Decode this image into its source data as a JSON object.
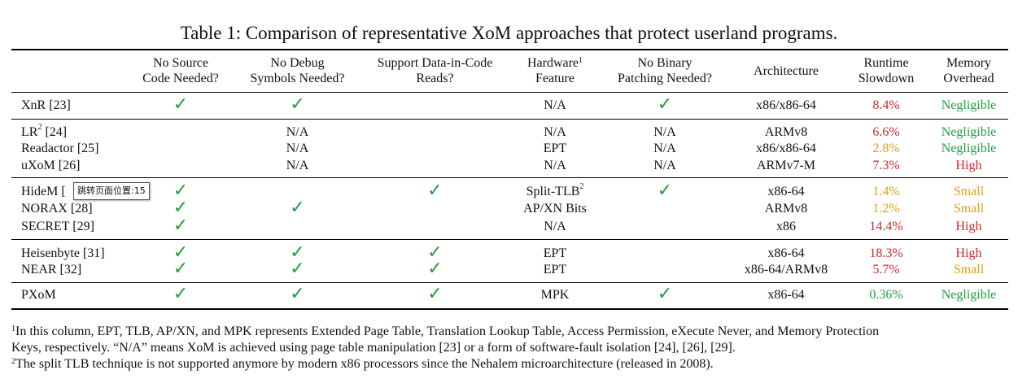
{
  "caption": "Table 1: Comparison of representative XoM approaches that protect userland programs.",
  "headers": {
    "approach": "",
    "no_source_1": "No Source",
    "no_source_2": "Code Needed?",
    "no_debug_1": "No Debug",
    "no_debug_2": "Symbols Needed?",
    "data_code_1": "Support Data-in-Code",
    "data_code_2": "Reads?",
    "hw_1": "Hardware",
    "hw_sup": "1",
    "hw_2": "Feature",
    "no_patch_1": "No Binary",
    "no_patch_2": "Patching Needed?",
    "arch": "Architecture",
    "runtime_1": "Runtime",
    "runtime_2": "Slowdown",
    "memory_1": "Memory",
    "memory_2": "Overhead"
  },
  "check_symbol": "✓",
  "rows": [
    {
      "name": "XnR [23]",
      "no_source": "✓",
      "no_debug": "✓",
      "data_code": "",
      "hw": "N/A",
      "no_patch": "✓",
      "arch": "x86/x86-64",
      "runtime": "8.4%",
      "memory": "Negligible"
    },
    {
      "name": "LR",
      "name_sup": "2",
      "name_ref": " [24]",
      "no_source": "",
      "no_debug": "N/A",
      "data_code": "",
      "hw": "N/A",
      "no_patch": "N/A",
      "arch": "ARMv8",
      "runtime": "6.6%",
      "memory": "Negligible"
    },
    {
      "name": "Readactor [25]",
      "no_source": "",
      "no_debug": "N/A",
      "data_code": "",
      "hw": "EPT",
      "no_patch": "N/A",
      "arch": "x86/x86-64",
      "runtime": "2.8%",
      "memory": "Negligible"
    },
    {
      "name": "uXoM [26]",
      "no_source": "",
      "no_debug": "N/A",
      "data_code": "",
      "hw": "N/A",
      "no_patch": "N/A",
      "arch": "ARMv7-M",
      "runtime": "7.3%",
      "memory": "High"
    },
    {
      "name": "HideM [",
      "no_source": "✓",
      "no_debug": "",
      "data_code": "✓",
      "hw": "Split-TLB",
      "hw_sup": "2",
      "no_patch": "✓",
      "arch": "x86-64",
      "runtime": "1.4%",
      "memory": "Small"
    },
    {
      "name": "NORAX [28]",
      "no_source": "✓",
      "no_debug": "✓",
      "data_code": "",
      "hw": "AP/XN Bits",
      "no_patch": "",
      "arch": "ARMv8",
      "runtime": "1.2%",
      "memory": "Small"
    },
    {
      "name": "SECRET [29]",
      "no_source": "✓",
      "no_debug": "",
      "data_code": "",
      "hw": "N/A",
      "no_patch": "",
      "arch": "x86",
      "runtime": "14.4%",
      "memory": "High"
    },
    {
      "name": "Heisenbyte [31]",
      "no_source": "✓",
      "no_debug": "✓",
      "data_code": "✓",
      "hw": "EPT",
      "no_patch": "",
      "arch": "x86-64",
      "runtime": "18.3%",
      "memory": "High"
    },
    {
      "name": "NEAR [32]",
      "no_source": "✓",
      "no_debug": "✓",
      "data_code": "✓",
      "hw": "EPT",
      "no_patch": "",
      "arch": "x86-64/ARMv8",
      "runtime": "5.7%",
      "memory": "Small"
    },
    {
      "name": "PXoM",
      "no_source": "✓",
      "no_debug": "✓",
      "data_code": "✓",
      "hw": "MPK",
      "no_patch": "✓",
      "arch": "x86-64",
      "runtime": "0.36%",
      "memory": "Negligible"
    }
  ],
  "colors": {
    "check": "#1e9e3e",
    "high": "#d0262a",
    "medium": "#e0a020",
    "low": "#1e9e3e"
  },
  "tooltip": "跳转页面位置:15",
  "footnotes": {
    "fn1_sup": "1",
    "fn1_text": "In this column, EPT, TLB, AP/XN, and MPK represents Extended Page Table, Translation Lookup Table, Access Permission, eXecute Never, and Memory Protection",
    "fn1_text2": "Keys, respectively. “N/A” means XoM is achieved using page table manipulation [23] or a form of software-fault isolation [24], [26], [29].",
    "fn2_sup": "2",
    "fn2_text": "The split TLB technique is not supported anymore by modern x86 processors since the Nehalem microarchitecture (released in 2008)."
  }
}
